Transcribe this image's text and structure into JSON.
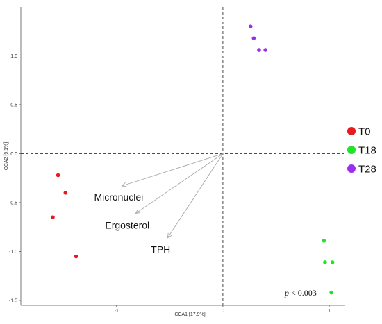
{
  "chart_data": {
    "type": "scatter",
    "title": "",
    "xlabel": "CCA1   [17.9%]",
    "ylabel": "CCA2   [9.1%]",
    "xlim": [
      -1.9,
      1.15
    ],
    "ylim": [
      -1.55,
      1.5
    ],
    "x_ticks": [
      -1,
      0,
      1
    ],
    "x_tick_labels": [
      "-1",
      "0",
      "1"
    ],
    "y_ticks": [
      -1.5,
      -1.0,
      -0.5,
      0.0,
      0.5,
      1.0
    ],
    "y_tick_labels": [
      "-1.5",
      "-1.0",
      "-0.5",
      "0.0",
      "0.5",
      "1.0"
    ],
    "grid": false,
    "reference_lines": {
      "x": 0,
      "y": 0,
      "style": "dashed"
    },
    "legend_position": "right",
    "series": [
      {
        "name": "T0",
        "color": "#e8191f",
        "points": [
          [
            -1.55,
            -0.22
          ],
          [
            -1.48,
            -0.4
          ],
          [
            -1.6,
            -0.65
          ],
          [
            -1.38,
            -1.05
          ]
        ]
      },
      {
        "name": "T18",
        "color": "#22e22a",
        "points": [
          [
            0.95,
            -0.89
          ],
          [
            0.96,
            -1.11
          ],
          [
            1.03,
            -1.11
          ],
          [
            1.02,
            -1.42
          ]
        ]
      },
      {
        "name": "T28",
        "color": "#9b2ff0",
        "points": [
          [
            0.26,
            1.3
          ],
          [
            0.29,
            1.18
          ],
          [
            0.34,
            1.06
          ],
          [
            0.4,
            1.06
          ]
        ]
      }
    ],
    "vectors": [
      {
        "name": "Micronuclei",
        "x": -0.95,
        "y": -0.33
      },
      {
        "name": "Ergosterol",
        "x": -0.82,
        "y": -0.61
      },
      {
        "name": "TPH",
        "x": -0.52,
        "y": -0.86
      }
    ],
    "annotation": {
      "prefix": "p",
      "text": " < 0.003"
    }
  }
}
